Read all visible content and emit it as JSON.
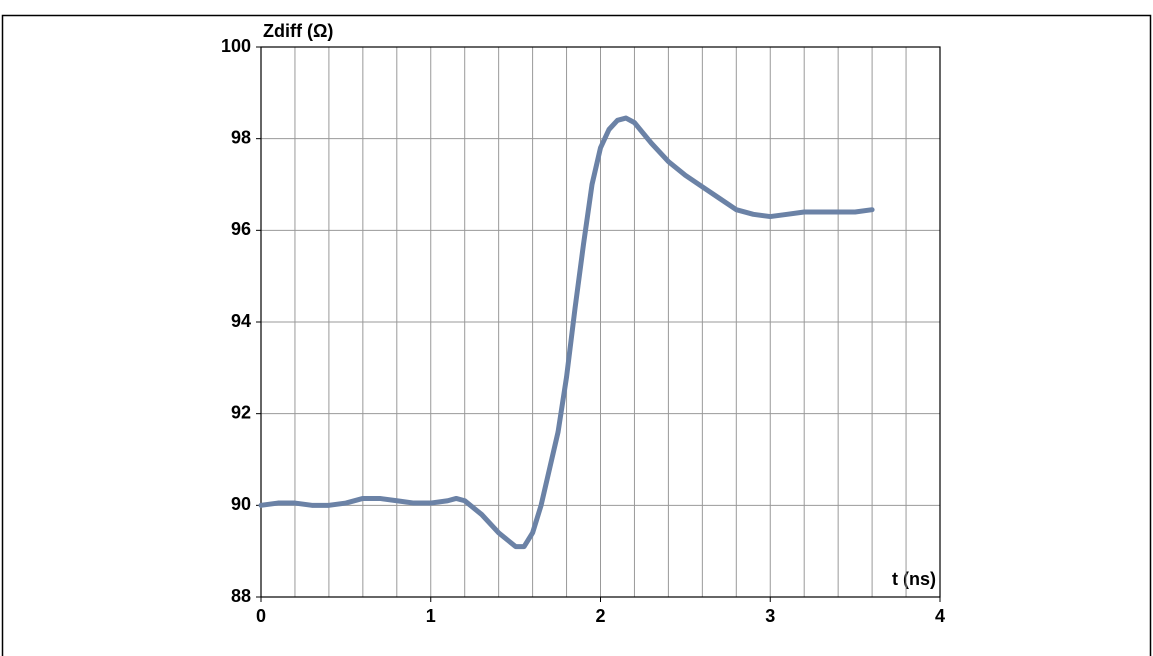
{
  "chart_data": {
    "type": "line",
    "y_label": "Zdiff (Ω)",
    "x_label": "t (ns)",
    "xlim": [
      0,
      4
    ],
    "xticks": [
      0,
      1,
      2,
      3,
      4
    ],
    "x_gridlines": [
      0.2,
      0.4,
      0.6,
      0.8,
      1,
      1.2,
      1.4,
      1.6,
      1.8,
      2,
      2.2,
      2.4,
      2.6,
      2.8,
      3,
      3.2,
      3.4,
      3.6,
      3.8
    ],
    "ylim": [
      88,
      100
    ],
    "yticks": [
      88,
      90,
      92,
      94,
      96,
      98,
      100
    ],
    "grid": true,
    "series": [
      {
        "color": "#6b82a6",
        "x": [
          0,
          0.1,
          0.2,
          0.3,
          0.4,
          0.5,
          0.6,
          0.7,
          0.8,
          0.9,
          1.0,
          1.1,
          1.15,
          1.2,
          1.3,
          1.4,
          1.5,
          1.55,
          1.6,
          1.65,
          1.7,
          1.75,
          1.8,
          1.85,
          1.9,
          1.95,
          2.0,
          2.05,
          2.1,
          2.15,
          2.2,
          2.3,
          2.4,
          2.5,
          2.6,
          2.7,
          2.8,
          2.9,
          3.0,
          3.1,
          3.2,
          3.3,
          3.4,
          3.5,
          3.6
        ],
        "values": [
          90.0,
          90.05,
          90.05,
          90.0,
          90.0,
          90.05,
          90.15,
          90.15,
          90.1,
          90.05,
          90.05,
          90.1,
          90.15,
          90.1,
          89.8,
          89.4,
          89.1,
          89.1,
          89.4,
          90.0,
          90.8,
          91.6,
          92.8,
          94.3,
          95.7,
          97.0,
          97.8,
          98.2,
          98.4,
          98.45,
          98.35,
          97.9,
          97.5,
          97.2,
          96.95,
          96.7,
          96.45,
          96.35,
          96.3,
          96.35,
          96.4,
          96.4,
          96.4,
          96.4,
          96.45
        ]
      }
    ]
  }
}
